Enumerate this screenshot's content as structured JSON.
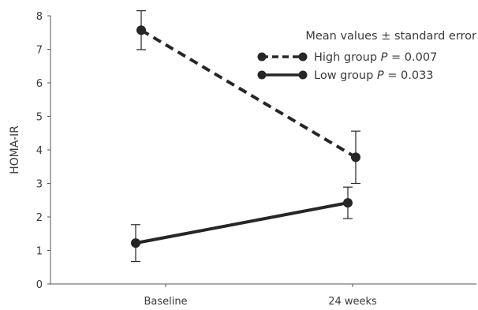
{
  "chart_data": {
    "type": "line",
    "ylabel": "HOMA-IR",
    "xlabel": "",
    "categories": [
      "Baseline",
      "24 weeks"
    ],
    "ylim": [
      0,
      8
    ],
    "yticks": [
      0,
      1,
      2,
      3,
      4,
      5,
      6,
      7,
      8
    ],
    "grid": false,
    "legend_title": "Mean values ± standard error",
    "legend_position": "top-right",
    "series": [
      {
        "name": "High group",
        "p_label": "P",
        "p_value": "= 0.007",
        "values": [
          7.57,
          3.78
        ],
        "error": [
          0.58,
          0.78
        ],
        "line_style": "dashed",
        "color": "#262626"
      },
      {
        "name": "Low group",
        "p_label": "P",
        "p_value": "= 0.033",
        "values": [
          1.22,
          2.42
        ],
        "error": [
          0.55,
          0.47
        ],
        "line_style": "solid",
        "color": "#262626"
      }
    ]
  }
}
